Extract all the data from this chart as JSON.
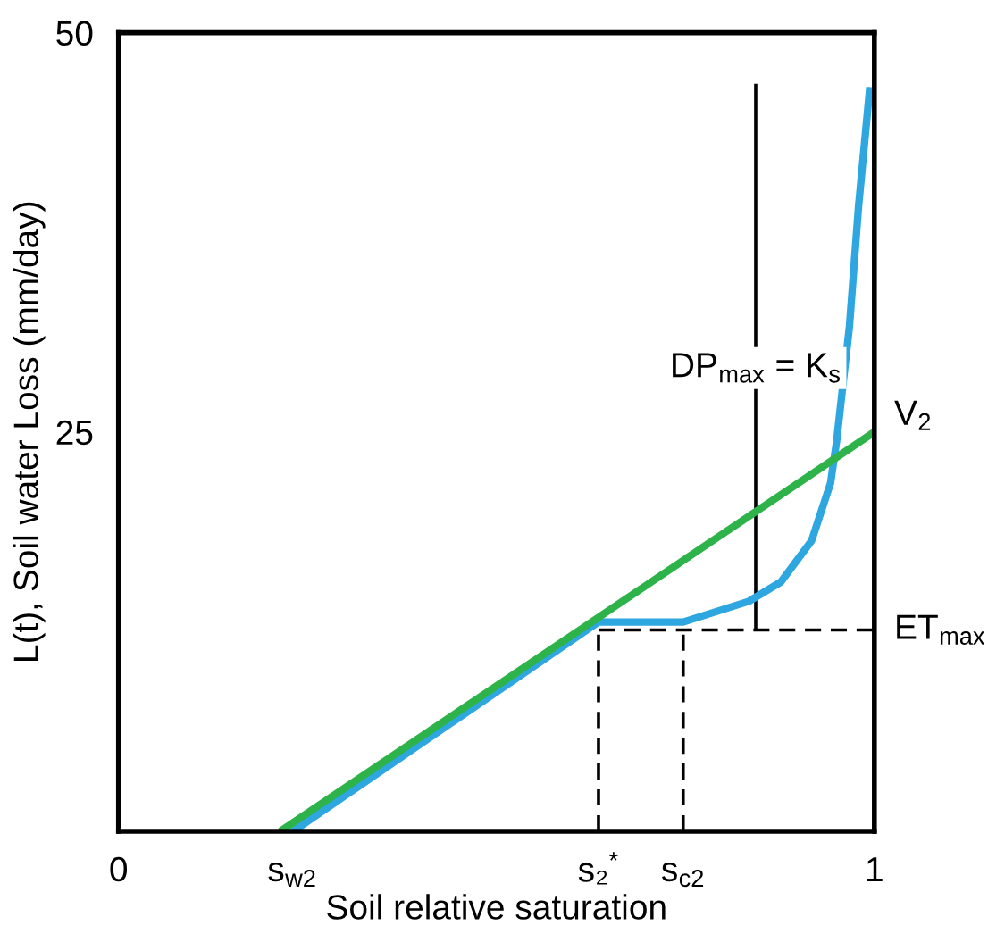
{
  "chart_data": {
    "type": "line",
    "xlabel": "Soil relative saturation",
    "ylabel": "L(t), Soil water Loss (mm/day)",
    "xlim": [
      0,
      1
    ],
    "ylim": [
      0,
      50
    ],
    "xticks": [
      0,
      {
        "value": 0.23,
        "label": "s$_{w2}$"
      },
      {
        "value": 0.635,
        "label": "s₂$^{*}$"
      },
      {
        "value": 0.747,
        "label": "s$_{c2}$"
      },
      1
    ],
    "yticks": [
      25,
      50
    ],
    "grid": false,
    "legend": false,
    "series": [
      {
        "color": "#2ea6e0",
        "x": [
          0.231,
          0.635,
          0.747,
          0.834,
          0.876,
          0.917,
          0.942,
          0.95,
          0.967,
          0.979,
          0.994
        ],
        "values": [
          0,
          13.1,
          13.1,
          14.4,
          15.6,
          18.2,
          21.8,
          24.4,
          31.6,
          39.1,
          46.6
        ]
      },
      {
        "name": "V$_{2}$",
        "color": "#2db34a",
        "x": [
          0.214,
          1.0
        ],
        "values": [
          0,
          25
        ]
      },
      {
        "color": "#000000",
        "line_style": "dashed",
        "x": [
          0.635,
          0.635
        ],
        "values": [
          0,
          12.6
        ]
      },
      {
        "color": "#000000",
        "line_style": "dashed",
        "x": [
          0.747,
          0.747
        ],
        "values": [
          0,
          12.6
        ]
      },
      {
        "name": "ET$_{max}$",
        "color": "#000000",
        "line_style": "dashed",
        "x": [
          0.635,
          1.0
        ],
        "values": [
          12.6,
          12.6
        ]
      },
      {
        "color": "#000000",
        "x": [
          0.843,
          0.843
        ],
        "values": [
          12.6,
          46.8
        ]
      }
    ],
    "annotations": [
      {
        "text": "DP$_{max}$ = K$_{s}$",
        "x": 0.843,
        "y": 29
      }
    ]
  }
}
